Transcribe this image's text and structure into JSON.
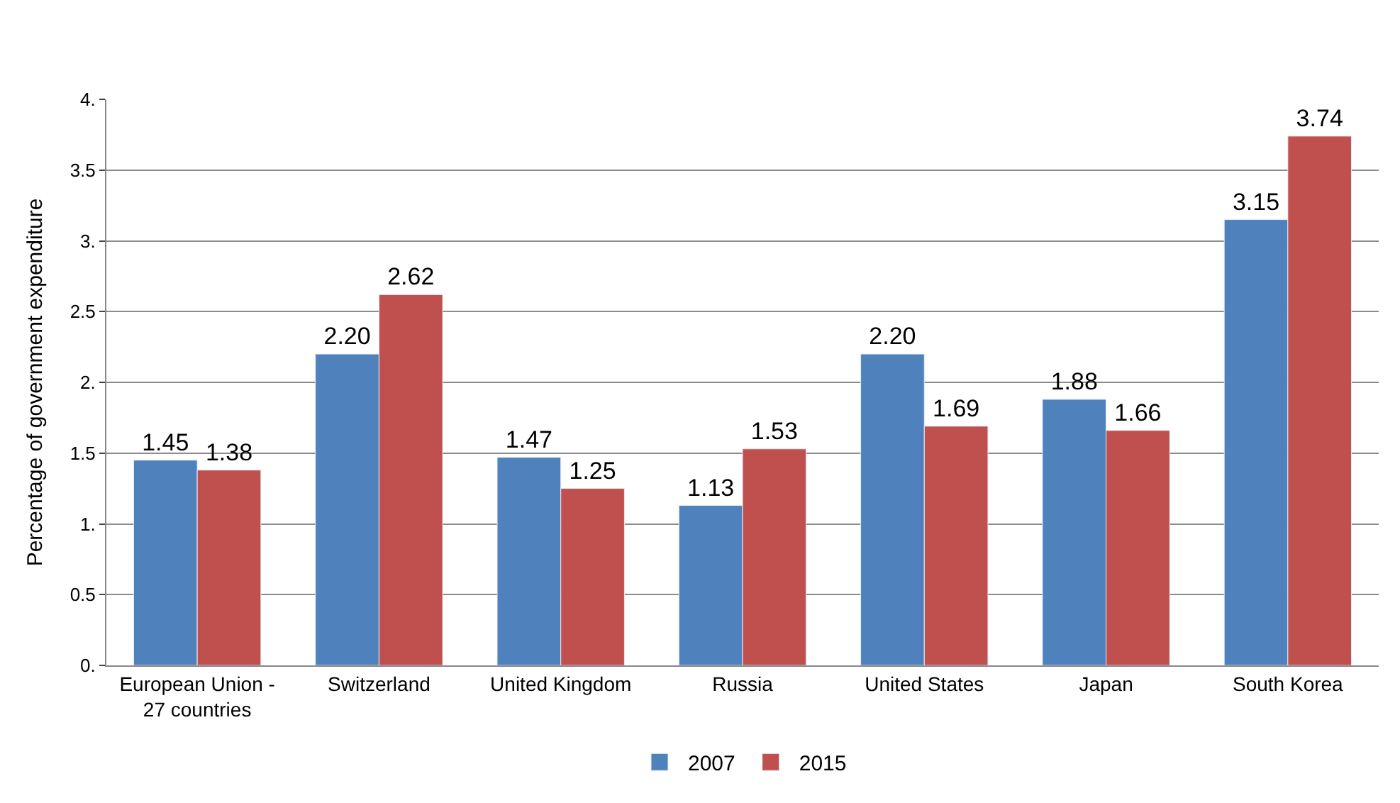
{
  "chart_data": {
    "type": "bar",
    "ylabel": "Percentage of government expenditure",
    "categories": [
      "European Union -\n27 countries",
      "Switzerland",
      "United Kingdom",
      "Russia",
      "United States",
      "Japan",
      "South Korea"
    ],
    "series": [
      {
        "name": "2007",
        "color": "#4f81bd",
        "values": [
          1.45,
          2.2,
          1.47,
          1.13,
          2.2,
          1.88,
          3.15
        ],
        "value_labels": [
          "1.45",
          "2.20",
          "1.47",
          "1.13",
          "2.20",
          "1.88",
          "3.15"
        ]
      },
      {
        "name": "2015",
        "color": "#c0504d",
        "values": [
          1.38,
          2.62,
          1.25,
          1.53,
          1.69,
          1.66,
          3.74
        ],
        "value_labels": [
          "1.38",
          "2.62",
          "1.25",
          "1.53",
          "1.69",
          "1.66",
          "3.74"
        ]
      }
    ],
    "ylim": [
      0,
      4
    ],
    "yticks": [
      {
        "value": 0,
        "label": "0."
      },
      {
        "value": 0.5,
        "label": "0.5"
      },
      {
        "value": 1,
        "label": "1."
      },
      {
        "value": 1.5,
        "label": "1.5"
      },
      {
        "value": 2,
        "label": "2."
      },
      {
        "value": 2.5,
        "label": "2.5"
      },
      {
        "value": 3,
        "label": "3."
      },
      {
        "value": 3.5,
        "label": "3.5"
      },
      {
        "value": 4,
        "label": "4."
      }
    ],
    "grid": "y",
    "legend": "bottom"
  }
}
